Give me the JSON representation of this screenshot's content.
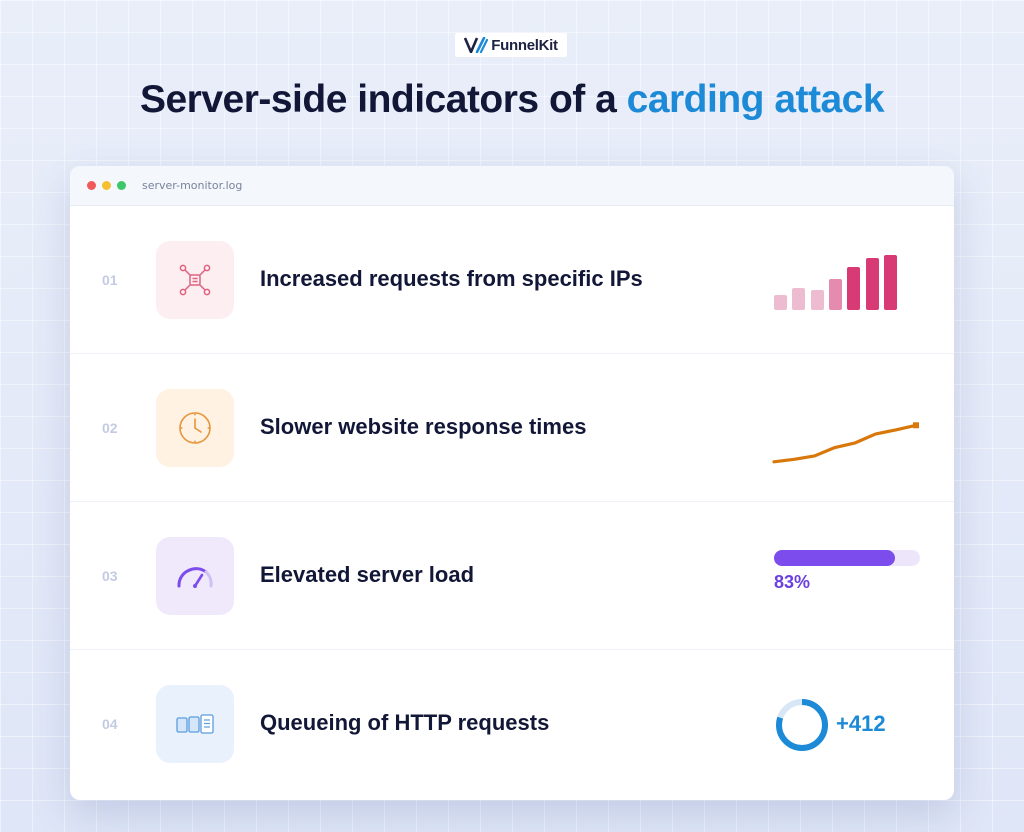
{
  "brand": {
    "name": "FunnelKit",
    "logo_icon": "funnelkit-logo-icon"
  },
  "headline": {
    "part1": "Server-side indicators of a ",
    "accent": "carding attack"
  },
  "window": {
    "title": "server-monitor.log",
    "controls": [
      "close",
      "minimize",
      "maximize"
    ]
  },
  "rows": [
    {
      "number": "01",
      "title": "Increased requests from specific IPs",
      "icon": "network-icon",
      "bars": [
        0.27,
        0.4,
        0.35,
        0.56,
        0.76,
        0.92,
        0.98
      ]
    },
    {
      "number": "02",
      "title": "Slower website response times",
      "icon": "clock-icon",
      "trend": [
        0.1,
        0.16,
        0.24,
        0.44,
        0.55,
        0.76,
        0.86,
        0.97
      ]
    },
    {
      "number": "03",
      "title": "Elevated server load",
      "icon": "gauge-icon",
      "load_value": 0.83,
      "load_label": "83%"
    },
    {
      "number": "04",
      "title": "Queueing of HTTP requests",
      "icon": "queue-icon",
      "queue_fraction": 0.8,
      "queue_label": "+412"
    }
  ],
  "colors": {
    "accent": "#1c8ad6",
    "bars_light": "#eebcd0",
    "bars_dark": "#d83a76",
    "trend": "#d9780a",
    "load": "#7d4ced",
    "queue": "#1c8ad6"
  }
}
